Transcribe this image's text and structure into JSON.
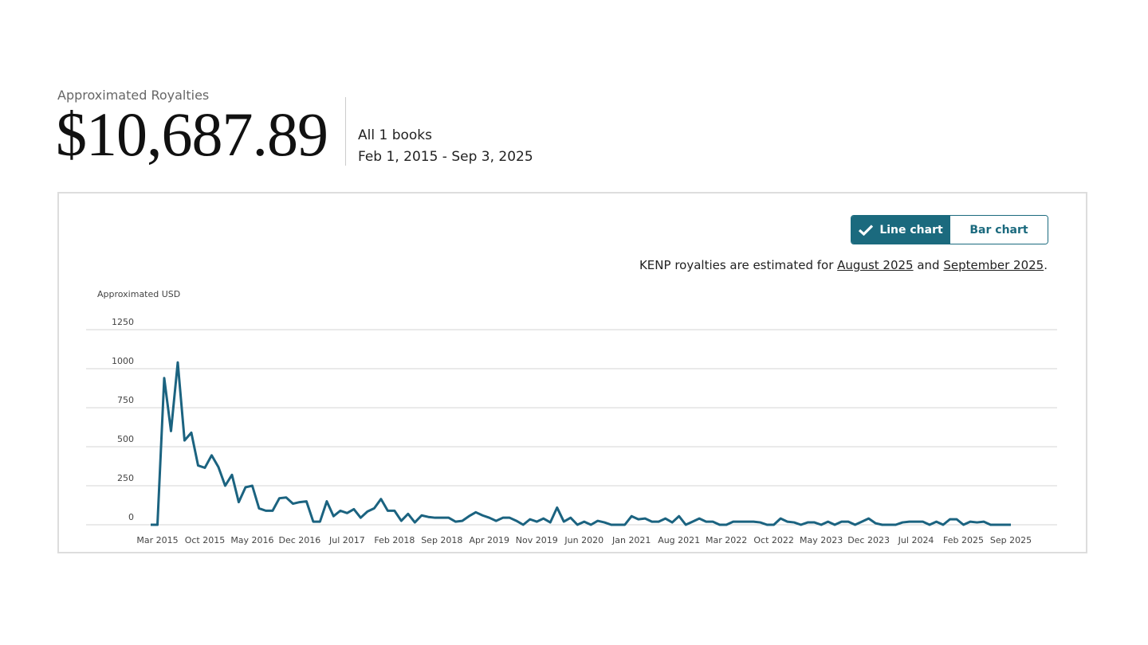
{
  "header": {
    "label": "Approximated Royalties",
    "amount": "$10,687.89",
    "books": "All 1 books",
    "date_range": "Feb 1, 2015 - Sep 3, 2025"
  },
  "toggle": {
    "line": "Line chart",
    "bar": "Bar chart"
  },
  "note": {
    "before": "KENP royalties are estimated for ",
    "link1": "August 2025",
    "middle": " and ",
    "link2": "September 2025",
    "after": "."
  },
  "chart_data": {
    "type": "line",
    "ylabel": "Approximated USD",
    "color": "#1b6380",
    "grid": true,
    "ylim": [
      0,
      1250
    ],
    "yticks": [
      0,
      250,
      500,
      750,
      1000,
      1250
    ],
    "categories": [
      null,
      "Mar 2015",
      null,
      null,
      null,
      null,
      null,
      null,
      "Oct 2015",
      null,
      null,
      null,
      null,
      null,
      null,
      "May 2016",
      null,
      null,
      null,
      null,
      null,
      null,
      "Dec 2016",
      null,
      null,
      null,
      null,
      null,
      null,
      "Jul 2017",
      null,
      null,
      null,
      null,
      null,
      null,
      "Feb 2018",
      null,
      null,
      null,
      null,
      null,
      null,
      "Sep 2018",
      null,
      null,
      null,
      null,
      null,
      null,
      "Apr 2019",
      null,
      null,
      null,
      null,
      null,
      null,
      "Nov 2019",
      null,
      null,
      null,
      null,
      null,
      null,
      "Jun 2020",
      null,
      null,
      null,
      null,
      null,
      null,
      "Jan 2021",
      null,
      null,
      null,
      null,
      null,
      null,
      "Aug 2021",
      null,
      null,
      null,
      null,
      null,
      null,
      "Mar 2022",
      null,
      null,
      null,
      null,
      null,
      null,
      "Oct 2022",
      null,
      null,
      null,
      null,
      null,
      null,
      "May 2023",
      null,
      null,
      null,
      null,
      null,
      null,
      "Dec 2023",
      null,
      null,
      null,
      null,
      null,
      null,
      "Jul 2024",
      null,
      null,
      null,
      null,
      null,
      null,
      "Feb 2025",
      null,
      null,
      null,
      null,
      null,
      null,
      "Sep 2025"
    ],
    "values": [
      0,
      0,
      940,
      600,
      1040,
      540,
      590,
      380,
      365,
      445,
      370,
      250,
      320,
      145,
      240,
      250,
      105,
      90,
      90,
      170,
      175,
      135,
      145,
      150,
      20,
      20,
      150,
      55,
      90,
      75,
      100,
      45,
      85,
      105,
      165,
      90,
      90,
      25,
      70,
      15,
      60,
      50,
      45,
      45,
      45,
      20,
      25,
      55,
      80,
      60,
      45,
      25,
      45,
      45,
      25,
      0,
      35,
      20,
      40,
      15,
      110,
      20,
      45,
      0,
      20,
      0,
      25,
      15,
      0,
      0,
      0,
      55,
      35,
      40,
      20,
      20,
      40,
      15,
      55,
      0,
      20,
      40,
      20,
      20,
      0,
      0,
      20,
      20,
      20,
      20,
      15,
      0,
      0,
      40,
      20,
      15,
      0,
      15,
      15,
      0,
      20,
      0,
      20,
      20,
      0,
      20,
      40,
      10,
      0,
      0,
      0,
      15,
      20,
      20,
      20,
      0,
      20,
      0,
      35,
      35,
      0,
      20,
      15,
      20,
      0,
      0,
      0,
      0
    ]
  }
}
